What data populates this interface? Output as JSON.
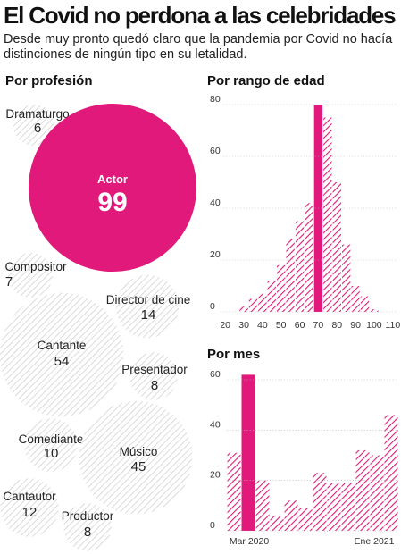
{
  "header": {
    "title": "El Covid no perdona a las celebridades",
    "subtitle": "Desde muy pronto quedó claro que la pandemia por Covid no hacía distinciones de ningún tipo en su letalidad."
  },
  "colors": {
    "accent": "#e0197a",
    "hatch": "#e0197a",
    "bubble_hatch": "#cfcfcf",
    "text": "#111111"
  },
  "chart_data": [
    {
      "type": "bubble",
      "title": "Por profesión",
      "items": [
        {
          "label": "Dramaturgo",
          "value": 6
        },
        {
          "label": "Actor",
          "value": 99,
          "highlight": true
        },
        {
          "label": "Compositor",
          "value": 7
        },
        {
          "label": "Director de cine",
          "value": 14
        },
        {
          "label": "Cantante",
          "value": 54
        },
        {
          "label": "Presentador",
          "value": 8
        },
        {
          "label": "Comediante",
          "value": 10
        },
        {
          "label": "Músico",
          "value": 45
        },
        {
          "label": "Cantautor",
          "value": 12
        },
        {
          "label": "Productor",
          "value": 8
        }
      ]
    },
    {
      "type": "bar",
      "title": "Por rango de edad",
      "categories": [
        "20",
        "25",
        "30",
        "35",
        "40",
        "45",
        "50",
        "55",
        "60",
        "65",
        "70",
        "75",
        "80",
        "85",
        "90",
        "95",
        "100",
        "105",
        "110"
      ],
      "tick_labels": [
        "20",
        "30",
        "40",
        "50",
        "60",
        "70",
        "80",
        "90",
        "100",
        "110"
      ],
      "values": [
        0,
        0,
        2,
        5,
        7,
        12,
        18,
        28,
        35,
        42,
        80,
        75,
        50,
        26,
        10,
        6,
        1,
        0,
        0
      ],
      "highlight_index": 10,
      "ylim": [
        0,
        80
      ],
      "yticks": [
        0,
        20,
        40,
        60,
        80
      ],
      "grid": false
    },
    {
      "type": "bar",
      "title": "Por mes",
      "categories": [
        "2020-02",
        "2020-03",
        "2020-04",
        "2020-05",
        "2020-06",
        "2020-07",
        "2020-08",
        "2020-09",
        "2020-10",
        "2020-11",
        "2020-12",
        "2021-01"
      ],
      "tick_labels": {
        "start": "Mar 2020",
        "end": "Ene 2021"
      },
      "values": [
        31,
        62,
        20,
        6,
        12,
        9,
        23,
        19,
        19,
        32,
        30,
        46
      ],
      "highlight_index": 1,
      "ylim": [
        0,
        60
      ],
      "yticks": [
        0,
        20,
        40,
        60
      ],
      "grid": false
    }
  ]
}
